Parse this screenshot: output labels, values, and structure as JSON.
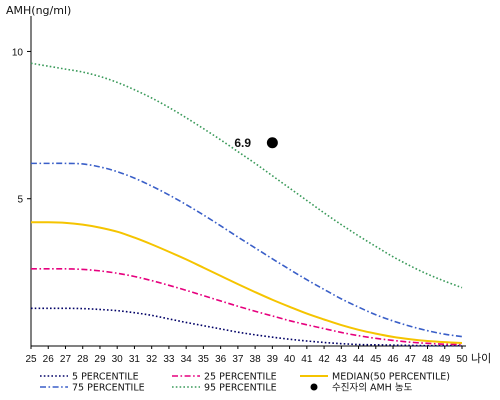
{
  "chart_data": {
    "type": "line",
    "title": "",
    "ylabel": "AMH(ng/ml)",
    "xlabel": "나이",
    "x": [
      25,
      26,
      27,
      28,
      29,
      30,
      31,
      32,
      33,
      34,
      35,
      36,
      37,
      38,
      39,
      40,
      41,
      42,
      43,
      44,
      45,
      46,
      47,
      48,
      49,
      50
    ],
    "xlim": [
      25,
      50
    ],
    "ylim": [
      0,
      11
    ],
    "yticks": [
      5,
      10
    ],
    "grid": false,
    "legend_position": "bottom",
    "series": [
      {
        "name": "5 PERCENTILE",
        "color": "#000066",
        "style": "dotted",
        "values": [
          1.28,
          1.28,
          1.28,
          1.27,
          1.24,
          1.2,
          1.13,
          1.04,
          0.92,
          0.8,
          0.69,
          0.58,
          0.47,
          0.38,
          0.3,
          0.23,
          0.17,
          0.12,
          0.08,
          0.05,
          0.04,
          0.03,
          0.02,
          0.01,
          0.01,
          0.01
        ]
      },
      {
        "name": "25 PERCENTILE",
        "color": "#e6007e",
        "style": "dashdot",
        "values": [
          2.62,
          2.62,
          2.62,
          2.6,
          2.55,
          2.47,
          2.36,
          2.22,
          2.06,
          1.89,
          1.71,
          1.53,
          1.35,
          1.18,
          1.02,
          0.86,
          0.72,
          0.59,
          0.46,
          0.35,
          0.26,
          0.19,
          0.13,
          0.09,
          0.06,
          0.05
        ]
      },
      {
        "name": "MEDIAN(50 PERCENTILE)",
        "color": "#f5c400",
        "style": "solid",
        "values": [
          4.2,
          4.2,
          4.18,
          4.12,
          4.02,
          3.88,
          3.68,
          3.45,
          3.2,
          2.94,
          2.66,
          2.38,
          2.1,
          1.83,
          1.57,
          1.33,
          1.1,
          0.9,
          0.71,
          0.55,
          0.42,
          0.31,
          0.23,
          0.17,
          0.13,
          0.1
        ]
      },
      {
        "name": "75 PERCENTILE",
        "color": "#3a5fc8",
        "style": "dashdot",
        "values": [
          6.2,
          6.2,
          6.2,
          6.18,
          6.08,
          5.92,
          5.7,
          5.43,
          5.13,
          4.8,
          4.45,
          4.08,
          3.7,
          3.33,
          2.96,
          2.6,
          2.25,
          1.92,
          1.6,
          1.32,
          1.06,
          0.85,
          0.67,
          0.52,
          0.4,
          0.32
        ]
      },
      {
        "name": "95 PERCENTILE",
        "color": "#3a9a5a",
        "style": "dotted",
        "values": [
          9.6,
          9.5,
          9.4,
          9.3,
          9.15,
          8.95,
          8.7,
          8.42,
          8.1,
          7.75,
          7.38,
          7.0,
          6.6,
          6.2,
          5.78,
          5.36,
          4.94,
          4.52,
          4.12,
          3.74,
          3.38,
          3.03,
          2.72,
          2.44,
          2.2,
          1.98
        ]
      }
    ],
    "points": [
      {
        "name": "수진자의 AMH 농도",
        "x": 39,
        "y": 6.9,
        "label": "6.9",
        "color": "#000000"
      }
    ],
    "legend": [
      "5 PERCENTILE",
      "25 PERCENTILE",
      "MEDIAN(50 PERCENTILE)",
      "75 PERCENTILE",
      "95 PERCENTILE",
      "수진자의 AMH 농도"
    ]
  }
}
